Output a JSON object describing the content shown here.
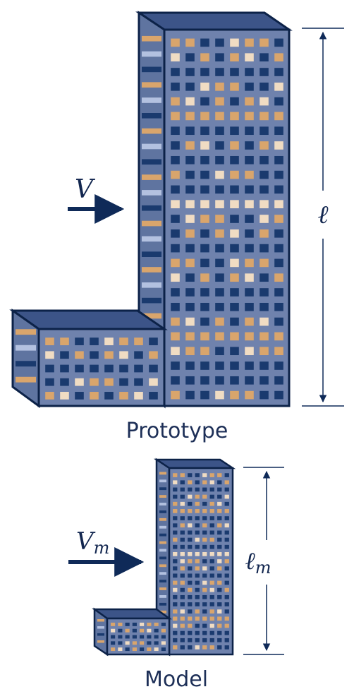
{
  "prototype": {
    "caption": "Prototype",
    "velocity_label": "V",
    "length_label": "ℓ"
  },
  "model": {
    "caption": "Model",
    "velocity_label": "V",
    "velocity_subscript": "m",
    "length_label": "ℓ",
    "length_subscript": "m"
  },
  "colors": {
    "outline": "#0c2248",
    "facade": "#6f82ad",
    "side": "#5f74a0",
    "roof": "#3c5488",
    "window_dark": "#1a3a6e",
    "window_orange": "#d9a56c",
    "window_cream": "#f0dcc3",
    "side_light": "#b3c1e0",
    "arrow": "#0f2a58"
  }
}
